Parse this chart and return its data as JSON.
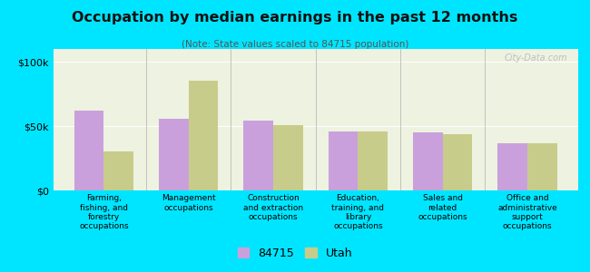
{
  "title": "Occupation by median earnings in the past 12 months",
  "subtitle": "(Note: State values scaled to 84715 population)",
  "categories": [
    "Farming,\nfishing, and\nforestry\noccupations",
    "Management\noccupations",
    "Construction\nand extraction\noccupations",
    "Education,\ntraining, and\nlibrary\noccupations",
    "Sales and\nrelated\noccupations",
    "Office and\nadministrative\nsupport\noccupations"
  ],
  "values_84715": [
    62000,
    56000,
    54000,
    46000,
    45000,
    37000
  ],
  "values_utah": [
    30000,
    85000,
    51000,
    46000,
    44000,
    37000
  ],
  "color_84715": "#c9a0dc",
  "color_utah": "#c8cc8a",
  "background_outer": "#00e5ff",
  "background_plot": "#eef2e0",
  "yticks": [
    0,
    50000,
    100000
  ],
  "ytick_labels": [
    "$0",
    "$50k",
    "$100k"
  ],
  "ylim": [
    0,
    110000
  ],
  "legend_label_84715": "84715",
  "legend_label_utah": "Utah",
  "watermark": "City-Data.com"
}
